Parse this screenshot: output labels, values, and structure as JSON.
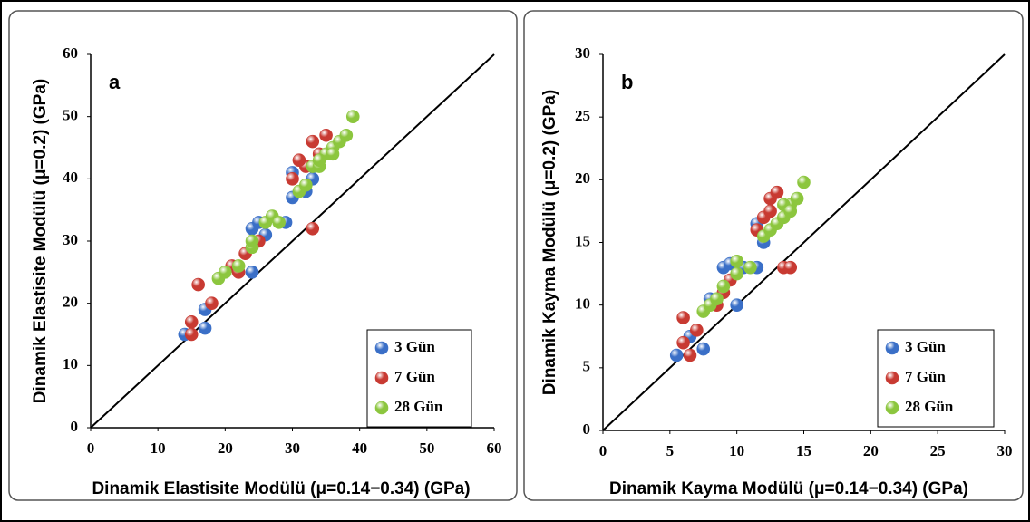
{
  "chart_data": [
    {
      "type": "scatter",
      "panel_label": "a",
      "x_label": "Dinamik Elastisite Modülü (μ=0.14−0.34) (GPa)",
      "y_label": "Dinamik Elastisite Modülü (μ=0.2) (GPa)",
      "xlim": [
        0,
        60
      ],
      "ylim": [
        0,
        60
      ],
      "xticks": [
        0,
        10,
        20,
        30,
        40,
        50,
        60
      ],
      "yticks": [
        0,
        10,
        20,
        30,
        40,
        50,
        60
      ],
      "grid": false,
      "legend": "bottom-right",
      "series": [
        {
          "name": "3 Gün",
          "color": "#3a6fc7",
          "x": [
            14,
            17,
            17,
            24,
            24,
            26,
            29,
            30,
            30,
            32,
            33,
            25
          ],
          "values": [
            15,
            16,
            19,
            25,
            32,
            31,
            33,
            37,
            41,
            38,
            40,
            33
          ]
        },
        {
          "name": "7 Gün",
          "color": "#c83a32",
          "x": [
            15,
            15,
            16,
            18,
            21,
            22,
            23,
            25,
            30,
            32,
            33,
            33,
            35,
            34,
            31
          ],
          "values": [
            15,
            17,
            23,
            20,
            26,
            25,
            28,
            30,
            40,
            42,
            32,
            46,
            47,
            44,
            43
          ]
        },
        {
          "name": "28 Gün",
          "color": "#8cc63e",
          "x": [
            19,
            20,
            22,
            24,
            24,
            26,
            27,
            28,
            31,
            32,
            33,
            34,
            35,
            36,
            37,
            38,
            39,
            34,
            36
          ],
          "values": [
            24,
            25,
            26,
            29,
            30,
            33,
            34,
            33,
            38,
            39,
            42,
            42,
            44,
            45,
            46,
            47,
            50,
            43,
            44
          ]
        }
      ]
    },
    {
      "type": "scatter",
      "panel_label": "b",
      "x_label": "Dinamik Kayma Modülü (μ=0.14−0.34) (GPa)",
      "y_label": "Dinamik Kayma Modülü (μ=0.2) (GPa)",
      "xlim": [
        0,
        30
      ],
      "ylim": [
        0,
        30
      ],
      "xticks": [
        0,
        5,
        10,
        15,
        20,
        25,
        30
      ],
      "yticks": [
        0,
        5,
        10,
        15,
        20,
        25,
        30
      ],
      "grid": false,
      "legend": "bottom-right",
      "series": [
        {
          "name": "3 Gün",
          "color": "#3a6fc7",
          "x": [
            5.5,
            6.5,
            7.5,
            8,
            9,
            9.5,
            10,
            11.5,
            11.5,
            12,
            10.5
          ],
          "values": [
            6,
            7.5,
            6.5,
            10.5,
            13,
            13.3,
            10,
            16.5,
            13,
            15,
            13
          ]
        },
        {
          "name": "7 Gün",
          "color": "#c83a32",
          "x": [
            6,
            6,
            6.5,
            7,
            8.5,
            9,
            9.5,
            11.5,
            12,
            12.5,
            13,
            13.5,
            14,
            12.5
          ],
          "values": [
            7,
            9,
            6,
            8,
            10,
            11,
            12,
            16,
            17,
            18.5,
            19,
            13,
            13,
            17.5
          ]
        },
        {
          "name": "28 Gün",
          "color": "#8cc63e",
          "x": [
            7.5,
            8,
            8.5,
            9,
            10,
            10,
            11,
            12,
            12.5,
            13,
            13.5,
            14,
            14.5,
            15,
            13.5,
            14
          ],
          "values": [
            9.5,
            10,
            10.5,
            11.5,
            12.5,
            13.5,
            13,
            15.5,
            16,
            16.5,
            17,
            18,
            18.5,
            19.8,
            18,
            17.5
          ]
        }
      ]
    }
  ]
}
